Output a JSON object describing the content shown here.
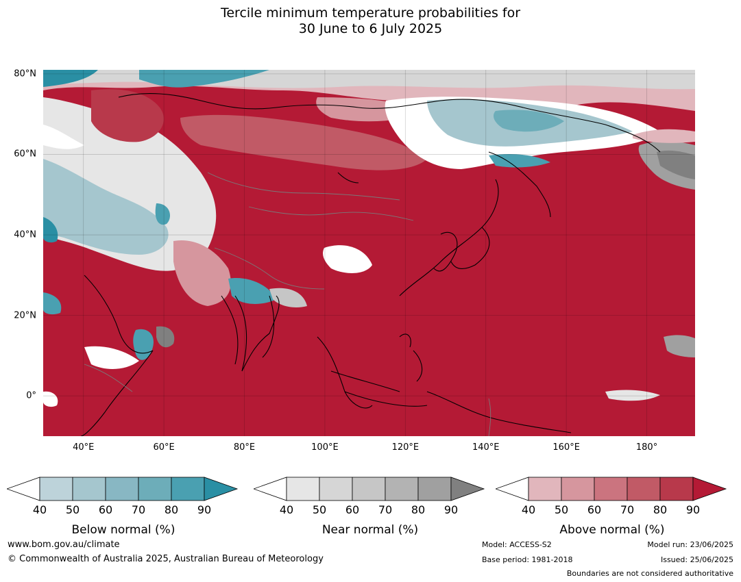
{
  "title": {
    "line1": "Tercile minimum temperature probabilities for",
    "line2": "30 June to 6 July 2025"
  },
  "map": {
    "lat_labels": [
      "80°N",
      "60°N",
      "40°N",
      "20°N",
      "0°"
    ],
    "lon_labels": [
      "40°E",
      "60°E",
      "80°E",
      "100°E",
      "120°E",
      "140°E",
      "160°E",
      "180°"
    ],
    "extent": {
      "lon_min": 30,
      "lon_max": 192,
      "lat_min": -10,
      "lat_max": 81
    },
    "lat_values": [
      80,
      60,
      40,
      20,
      0
    ],
    "lon_values": [
      40,
      60,
      80,
      100,
      120,
      140,
      160,
      180
    ]
  },
  "legends": [
    {
      "caption": "Below normal (%)",
      "ticks": [
        "40",
        "50",
        "60",
        "70",
        "80",
        "90"
      ],
      "colors": [
        "#bdd3da",
        "#a5c6ce",
        "#88b7c3",
        "#6dadb9",
        "#4aa0b1",
        "#2a8fa4"
      ]
    },
    {
      "caption": "Near normal (%)",
      "ticks": [
        "40",
        "50",
        "60",
        "70",
        "80",
        "90"
      ],
      "colors": [
        "#e6e6e6",
        "#d6d6d6",
        "#c6c6c6",
        "#b3b3b3",
        "#a0a0a0",
        "#808080"
      ]
    },
    {
      "caption": "Above normal (%)",
      "ticks": [
        "40",
        "50",
        "60",
        "70",
        "80",
        "90"
      ],
      "colors": [
        "#e1b6bc",
        "#d6969e",
        "#cb747f",
        "#c15a66",
        "#b8394b",
        "#b41a35"
      ]
    }
  ],
  "footer": {
    "website": "www.bom.gov.au/climate",
    "copyright": "© Commonwealth of Australia 2025, Australian Bureau of Meteorology",
    "model": "Model: ACCESS-S2",
    "base_period": "Base period: 1981-2018",
    "model_run": "Model run: 23/06/2025",
    "issued": "Issued: 25/06/2025",
    "boundaries_note": "Boundaries are not considered authoritative"
  }
}
